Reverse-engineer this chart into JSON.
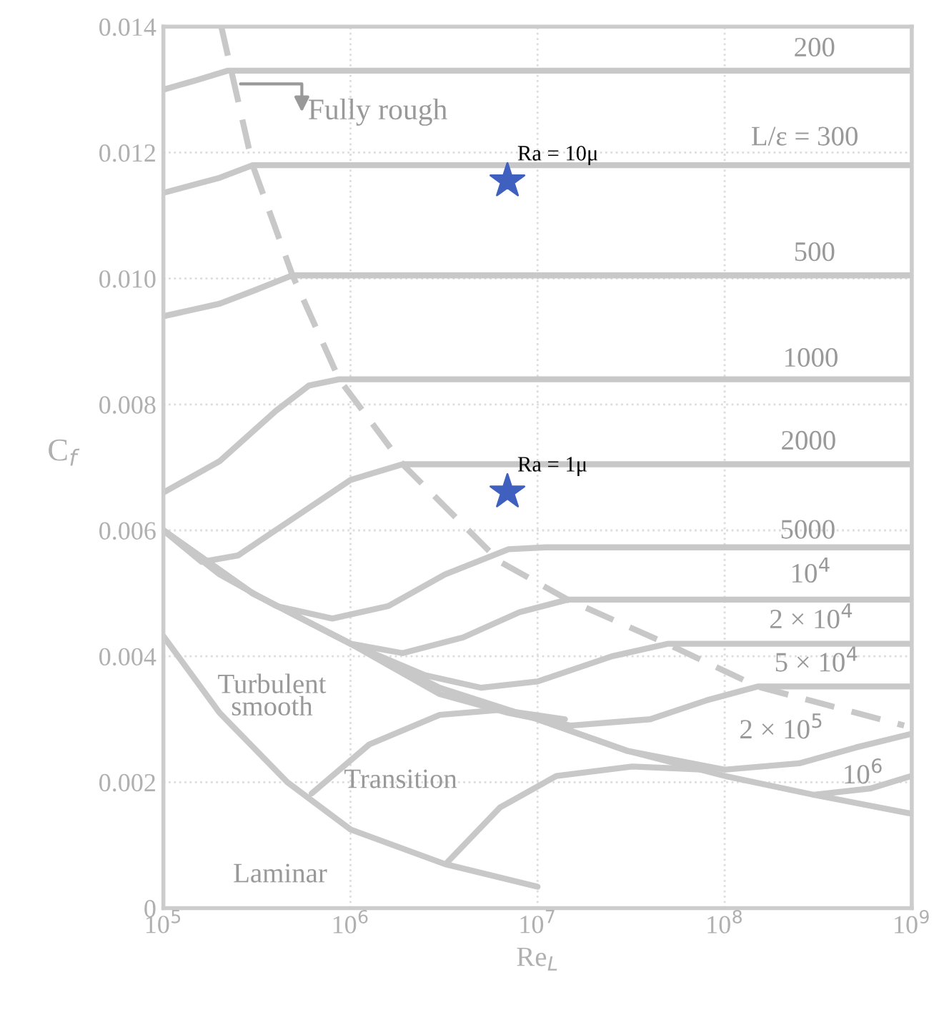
{
  "chart_data": {
    "type": "line",
    "xlabel": "Re$_{L}$",
    "ylabel": "C$_{f}$",
    "log": "x",
    "grid": true,
    "legend": false,
    "marker": "none",
    "xlim": [
      100000,
      1000000000
    ],
    "ylim": [
      0,
      0.014
    ],
    "xticks": [
      {
        "value": 100000,
        "label": "10$^{5}$"
      },
      {
        "value": 1000000,
        "label": "10$^{6}$"
      },
      {
        "value": 10000000,
        "label": "10$^{7}$"
      },
      {
        "value": 100000000,
        "label": "10$^{8}$"
      },
      {
        "value": 1000000000,
        "label": "10$^{9}$"
      }
    ],
    "yticks": [
      0,
      0.002,
      0.004,
      0.006,
      0.008,
      {
        "value": 0.01,
        "label": "0.010"
      },
      0.012,
      0.014
    ],
    "series": [
      {
        "color": "#c8c8c8",
        "x": [
          100000,
          150000,
          220000,
          1000000000
        ],
        "values": [
          0.013,
          0.01315,
          0.0133,
          0.0133
        ]
      },
      {
        "color": "#c8c8c8",
        "x": [
          100000,
          200000,
          300000,
          1000000000
        ],
        "values": [
          0.01136,
          0.0116,
          0.0118,
          0.0118
        ]
      },
      {
        "color": "#c8c8c8",
        "x": [
          100000,
          200000,
          300000,
          490000,
          1000000000
        ],
        "values": [
          0.0094,
          0.0096,
          0.0098,
          0.01005,
          0.01005
        ]
      },
      {
        "color": "#c8c8c8",
        "x": [
          100000,
          200000,
          400000,
          600000,
          870000,
          1000000000
        ],
        "values": [
          0.0066,
          0.0071,
          0.0079,
          0.0083,
          0.0084,
          0.0084
        ]
      },
      {
        "color": "#c8c8c8",
        "x": [
          100000,
          160000,
          250000,
          500000,
          1000000,
          1900000,
          1000000000
        ],
        "values": [
          0.006,
          0.0055,
          0.0056,
          0.0062,
          0.0068,
          0.00705,
          0.00705
        ]
      },
      {
        "color": "#c8c8c8",
        "x": [
          100000,
          200000,
          400000,
          800000,
          1600000,
          3200000,
          7000000,
          11000000,
          1000000000
        ],
        "values": [
          0.006,
          0.0053,
          0.0048,
          0.0046,
          0.0048,
          0.0053,
          0.0057,
          0.00573,
          0.00573
        ]
      },
      {
        "color": "#c8c8c8",
        "x": [
          100000,
          300000,
          1000000,
          1900000,
          4000000,
          8000000,
          14500000,
          1000000000
        ],
        "values": [
          0.006,
          0.005,
          0.0042,
          0.00405,
          0.0043,
          0.0047,
          0.0049,
          0.0049
        ]
      },
      {
        "color": "#c8c8c8",
        "x": [
          100000,
          300000,
          1000000,
          2500000,
          5000000,
          10000000,
          25000000,
          50000000,
          1000000000
        ],
        "values": [
          0.006,
          0.005,
          0.0042,
          0.0037,
          0.0035,
          0.0036,
          0.004,
          0.0042,
          0.0042
        ]
      },
      {
        "color": "#c8c8c8",
        "x": [
          100000,
          300000,
          1000000,
          3000000,
          7000000,
          15000000,
          40000000,
          80000000,
          150000000,
          1000000000
        ],
        "values": [
          0.006,
          0.005,
          0.0042,
          0.0034,
          0.0031,
          0.0029,
          0.003,
          0.0033,
          0.00352,
          0.00352
        ]
      },
      {
        "color": "#c8c8c8",
        "x": [
          100000,
          300000,
          1000000,
          3000000,
          10000000,
          30000000,
          100000000,
          300000000,
          1000000000
        ],
        "values": [
          0.006,
          0.005,
          0.0042,
          0.0035,
          0.003,
          0.0025,
          0.0021,
          0.0018,
          0.0015
        ]
      },
      {
        "color": "#c8c8c8",
        "x": [
          10000000,
          30000000,
          100000000,
          250000000,
          500000000,
          1000000000
        ],
        "values": [
          0.003,
          0.0025,
          0.0022,
          0.0023,
          0.00255,
          0.00277
        ]
      },
      {
        "color": "#c8c8c8",
        "x": [
          300000000,
          600000000,
          1000000000
        ],
        "values": [
          0.0018,
          0.0019,
          0.0021
        ]
      },
      {
        "color": "#c8c8c8",
        "x": [
          100000,
          200000,
          460000,
          1000000,
          3200000,
          10000000
        ],
        "values": [
          0.00432,
          0.0031,
          0.002,
          0.00125,
          0.0007,
          0.00034
        ]
      },
      {
        "color": "#c8c8c8",
        "x": [
          620000,
          1260000,
          3000000,
          6300000,
          14000000
        ],
        "values": [
          0.00182,
          0.0026,
          0.00307,
          0.00315,
          0.003
        ]
      },
      {
        "color": "#c8c8c8",
        "x": [
          3300000,
          6300000,
          12600000,
          32000000,
          79000000
        ],
        "values": [
          0.00073,
          0.0016,
          0.0021,
          0.00225,
          0.0022
        ]
      },
      {
        "color": "#c8c8c8",
        "line_style": "dashed",
        "x": [
          204000,
          300000,
          490000,
          870000,
          1900000,
          6300000,
          14500000,
          49000000,
          150000000,
          910000000
        ],
        "values": [
          0.014,
          0.0118,
          0.01005,
          0.0084,
          0.00705,
          0.0055,
          0.0049,
          0.0042,
          0.00352,
          0.0029
        ]
      },
      {
        "type": "scatter",
        "marker": "star",
        "name": "Ra = 10μ",
        "color": "#4060c0",
        "x": [
          6900000
        ],
        "values": [
          0.01155
        ]
      },
      {
        "type": "scatter",
        "marker": "star",
        "name": "Ra = 1μ",
        "color": "#4060c0",
        "x": [
          6900000
        ],
        "values": [
          0.00661
        ]
      }
    ],
    "annotations": [
      "200",
      "L/ε = 300",
      "500",
      "1000",
      "2000",
      "5000",
      "10$^{4}$",
      "2 × 10$^{4}$",
      "5 × 10$^{4}$",
      "2 × 10$^{5}$",
      "10$^{6}$",
      "Turbulent\nsmooth",
      "Transition",
      "Laminar",
      "Fully rough"
    ]
  }
}
